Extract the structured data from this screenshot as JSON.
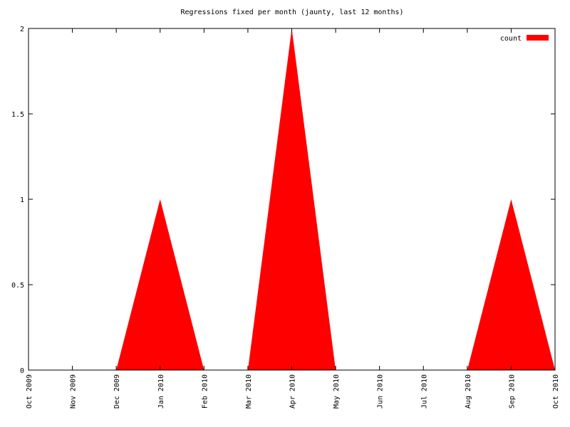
{
  "chart_data": {
    "type": "area",
    "title": "Regressions fixed per month (jaunty, last 12 months)",
    "categories": [
      "Oct 2009",
      "Nov 2009",
      "Dec 2009",
      "Jan 2010",
      "Feb 2010",
      "Mar 2010",
      "Apr 2010",
      "May 2010",
      "Jun 2010",
      "Jul 2010",
      "Aug 2010",
      "Sep 2010",
      "Oct 2010"
    ],
    "series": [
      {
        "name": "count",
        "color": "#ff0000",
        "values": [
          0,
          0,
          0,
          1,
          0,
          0,
          2,
          0,
          0,
          0,
          0,
          1,
          0
        ]
      }
    ],
    "ylim": [
      0,
      2
    ],
    "yticks": [
      0,
      0.5,
      1,
      1.5,
      2
    ],
    "legend": "top-right"
  }
}
